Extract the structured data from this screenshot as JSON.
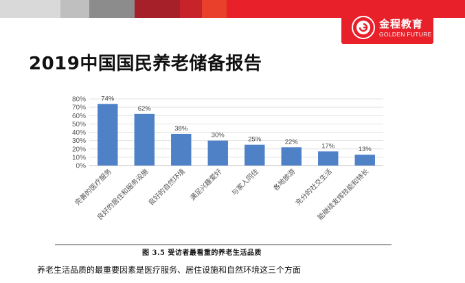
{
  "header": {
    "logo_cn": "金程教育",
    "logo_en": "GOLDEN FUTURE",
    "band_colors": [
      "#d9d9d9",
      "#bfbfbf",
      "#8c8c8c",
      "#a6202a",
      "#c8222b",
      "#e8402a",
      "#e8202a"
    ]
  },
  "slide": {
    "title": "2019中国国民养老储备报告",
    "footnote": "养老生活品质的最重要因素是医疗服务、居住设施和自然环境这三个方面"
  },
  "chart_data": {
    "type": "bar",
    "categories": [
      "完善的医疗服务",
      "良好的居住和服务设施",
      "良好的自然环境",
      "满足兴趣爱好",
      "与家人同住",
      "各地旅游",
      "充分的社交生活",
      "能继续发挥技能和特长"
    ],
    "values": [
      74,
      62,
      38,
      30,
      25,
      22,
      17,
      13
    ],
    "value_labels": [
      "74%",
      "62%",
      "38%",
      "30%",
      "25%",
      "22%",
      "17%",
      "13%"
    ],
    "y_ticks": [
      "0%",
      "10%",
      "20%",
      "30%",
      "40%",
      "50%",
      "60%",
      "70%",
      "80%"
    ],
    "ylim": [
      0,
      80
    ],
    "grid": true,
    "bar_color": "#4f81c7",
    "caption": "图 3.5  受访者最看重的养老生活品质"
  }
}
